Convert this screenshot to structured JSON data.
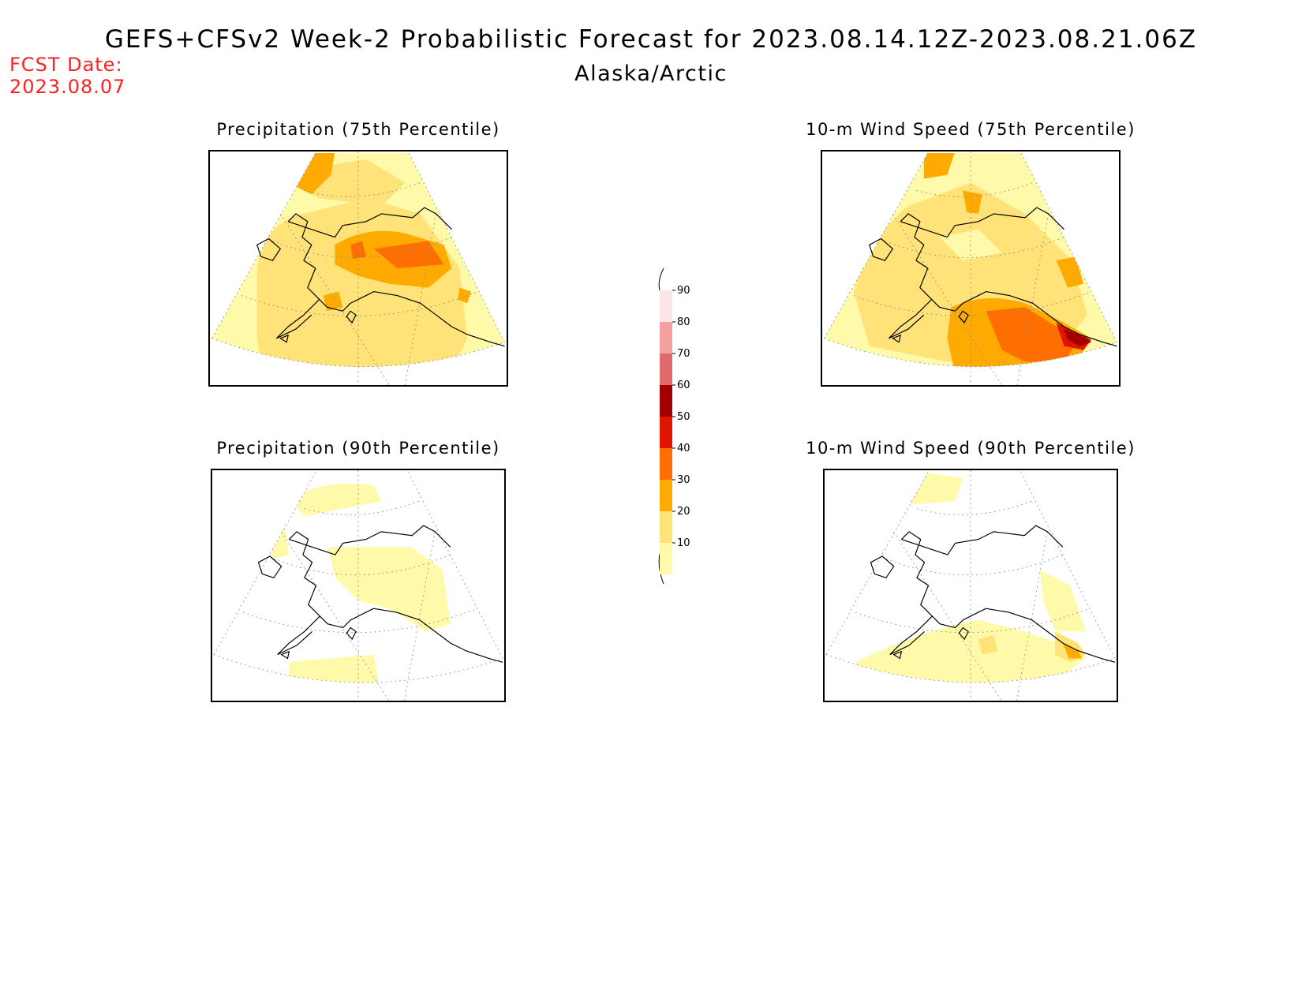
{
  "title": "GEFS+CFSv2 Week-2 Probabilistic Forecast for 2023.08.14.12Z-2023.08.21.06Z",
  "subtitle": "Alaska/Arctic",
  "fcst_label": "FCST Date:",
  "fcst_date": "2023.08.07",
  "colors": {
    "c10": "#fffaaa",
    "c20": "#ffe278",
    "c30": "#ffaa00",
    "c40": "#ff6e00",
    "c50": "#e11400",
    "c60": "#a50000",
    "c70": "#e06a6a",
    "c80": "#f5a0a0",
    "c90": "#ffe6e6",
    "coast": "#000000",
    "title_red": "#ff2020"
  },
  "panels": [
    {
      "name": "precip-75",
      "title": "Precipitation (75th Percentile)"
    },
    {
      "name": "wind-75",
      "title": "10-m Wind Speed (75th Percentile)"
    },
    {
      "name": "precip-90",
      "title": "Precipitation (90th Percentile)"
    },
    {
      "name": "wind-90",
      "title": "10-m Wind Speed (90th Percentile)"
    }
  ],
  "legend": {
    "labels": [
      "10",
      "20",
      "30",
      "40",
      "50",
      "60",
      "70",
      "80",
      "90"
    ]
  }
}
